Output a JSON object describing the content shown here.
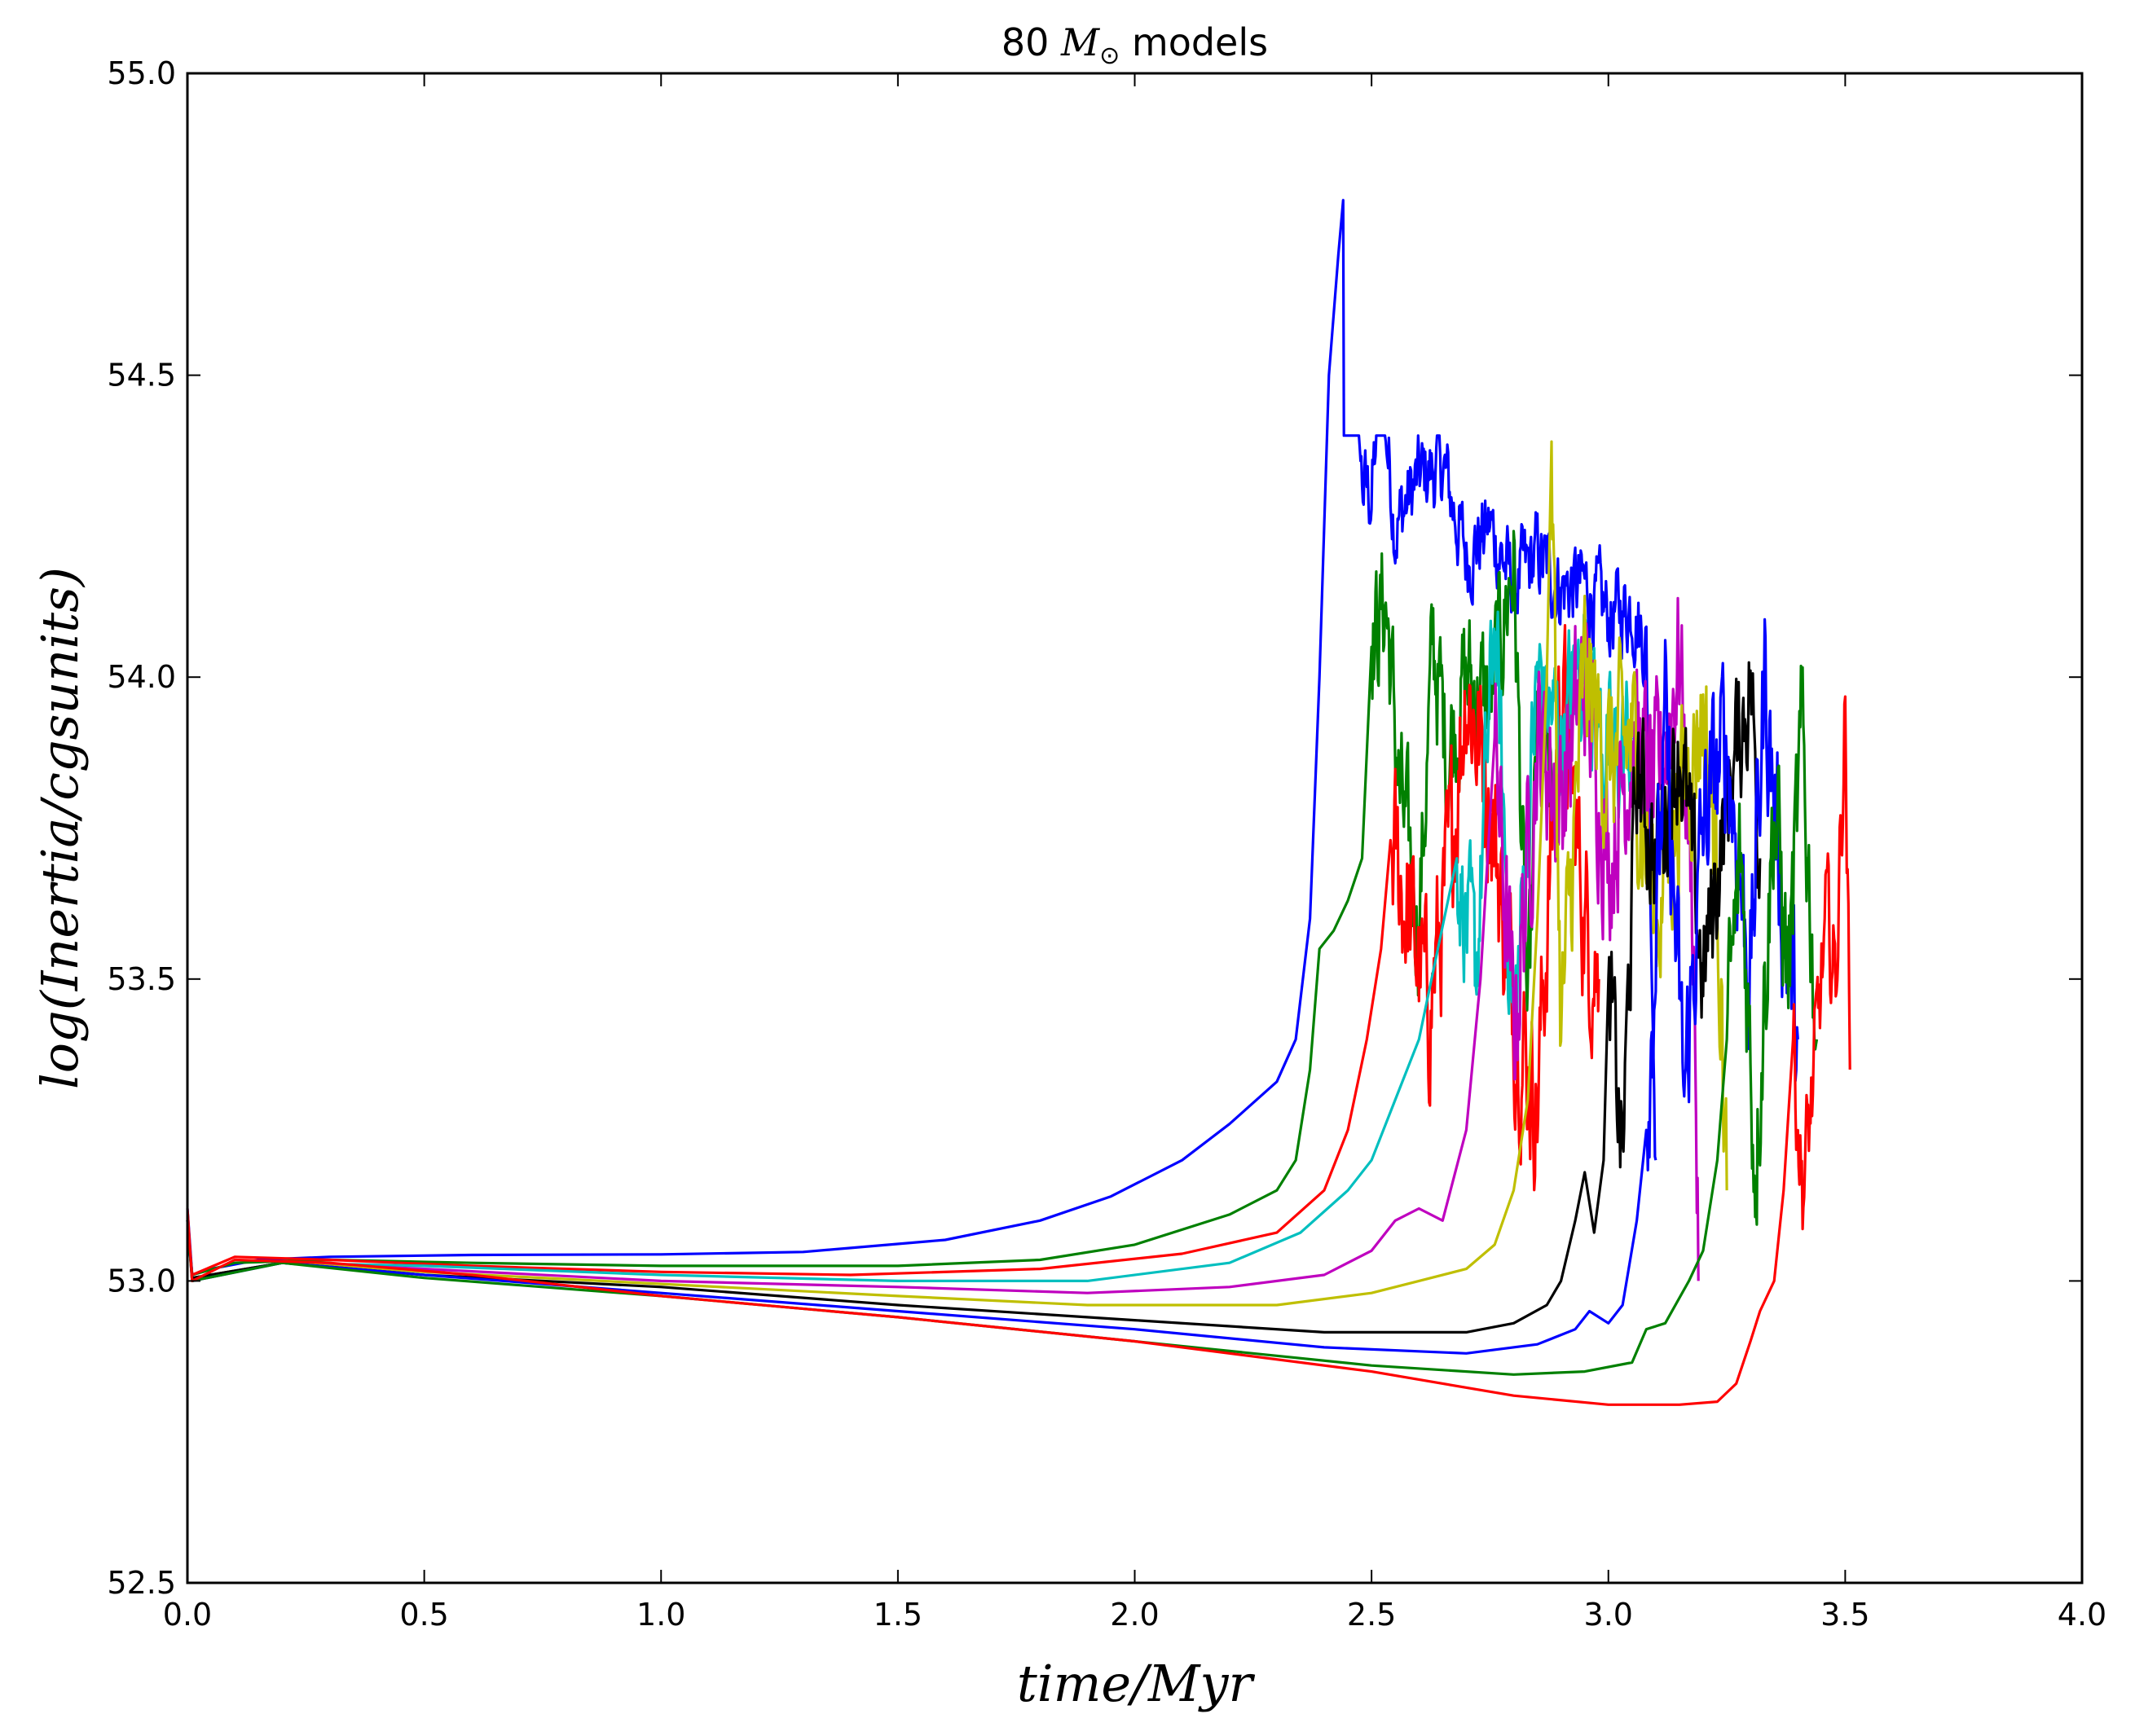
{
  "chart_data": {
    "type": "line",
    "title": {
      "prefix": "80 ",
      "math": "M",
      "sub": "⊙",
      "suffix": "  models"
    },
    "xlabel": "time/Myr",
    "ylabel": "log(Inertia/cgsunits)",
    "xlim": [
      0.0,
      4.0
    ],
    "ylim": [
      52.5,
      55.0
    ],
    "xticks": [
      "0.0",
      "0.5",
      "1.0",
      "1.5",
      "2.0",
      "2.5",
      "3.0",
      "3.5",
      "4.0"
    ],
    "yticks": [
      "52.5",
      "53.0",
      "53.5",
      "54.0",
      "54.5",
      "55.0"
    ],
    "grid": false,
    "series": [
      {
        "color": "#0000ff",
        "end_x": 3.1,
        "final": 53.2,
        "smooth": [
          [
            0,
            53.12
          ],
          [
            0.01,
            53.01
          ],
          [
            0.05,
            53.02
          ],
          [
            0.15,
            53.035
          ],
          [
            0.3,
            53.04
          ],
          [
            0.6,
            53.043
          ],
          [
            1.0,
            53.044
          ],
          [
            1.3,
            53.048
          ],
          [
            1.6,
            53.068
          ],
          [
            1.8,
            53.1
          ],
          [
            1.95,
            53.14
          ],
          [
            2.1,
            53.2
          ],
          [
            2.2,
            53.26
          ],
          [
            2.3,
            53.33
          ],
          [
            2.34,
            53.4
          ],
          [
            2.37,
            53.6
          ],
          [
            2.39,
            54.0
          ],
          [
            2.41,
            54.5
          ],
          [
            2.43,
            54.7
          ],
          [
            2.44,
            54.79
          ]
        ],
        "noisy": [
          [
            2.44,
            54.79
          ],
          [
            2.46,
            54.6
          ],
          [
            2.48,
            54.32
          ],
          [
            2.5,
            54.3
          ],
          [
            2.52,
            54.49
          ],
          [
            2.55,
            54.25
          ],
          [
            2.6,
            54.33
          ],
          [
            2.65,
            54.35
          ],
          [
            2.7,
            54.2
          ],
          [
            2.75,
            54.25
          ],
          [
            2.8,
            54.15
          ],
          [
            2.85,
            54.2
          ],
          [
            2.9,
            54.15
          ],
          [
            2.95,
            54.15
          ],
          [
            3.0,
            54.1
          ],
          [
            3.05,
            54.12
          ],
          [
            3.08,
            54.05
          ],
          [
            3.1,
            53.2
          ]
        ],
        "amp": 0.06
      },
      {
        "color": "#008000",
        "end_x": 2.88,
        "final": 53.8,
        "smooth": [
          [
            0,
            53.1
          ],
          [
            0.01,
            53.01
          ],
          [
            0.1,
            53.03
          ],
          [
            0.3,
            53.035
          ],
          [
            0.6,
            53.03
          ],
          [
            1.0,
            53.025
          ],
          [
            1.5,
            53.025
          ],
          [
            1.8,
            53.035
          ],
          [
            2.0,
            53.06
          ],
          [
            2.2,
            53.11
          ],
          [
            2.3,
            53.15
          ],
          [
            2.34,
            53.2
          ],
          [
            2.37,
            53.35
          ],
          [
            2.39,
            53.55
          ],
          [
            2.42,
            53.58
          ],
          [
            2.45,
            53.63
          ],
          [
            2.48,
            53.7
          ],
          [
            2.5,
            54.05
          ]
        ],
        "noisy": [
          [
            2.5,
            54.05
          ],
          [
            2.53,
            54.13
          ],
          [
            2.56,
            53.8
          ],
          [
            2.6,
            53.6
          ],
          [
            2.63,
            54.05
          ],
          [
            2.66,
            53.88
          ],
          [
            2.7,
            54.0
          ],
          [
            2.75,
            53.95
          ],
          [
            2.8,
            54.2
          ],
          [
            2.83,
            53.4
          ],
          [
            2.85,
            53.9
          ],
          [
            2.88,
            53.8
          ]
        ],
        "amp": 0.1
      },
      {
        "color": "#ff0000",
        "end_x": 2.98,
        "final": 53.5,
        "smooth": [
          [
            0,
            53.1
          ],
          [
            0.01,
            53.01
          ],
          [
            0.1,
            53.04
          ],
          [
            0.3,
            53.035
          ],
          [
            0.6,
            53.025
          ],
          [
            1.0,
            53.015
          ],
          [
            1.4,
            53.01
          ],
          [
            1.8,
            53.02
          ],
          [
            2.1,
            53.045
          ],
          [
            2.3,
            53.08
          ],
          [
            2.4,
            53.15
          ],
          [
            2.45,
            53.25
          ],
          [
            2.49,
            53.4
          ],
          [
            2.52,
            53.55
          ],
          [
            2.54,
            53.73
          ]
        ],
        "noisy": [
          [
            2.54,
            53.73
          ],
          [
            2.58,
            53.6
          ],
          [
            2.62,
            53.45
          ],
          [
            2.66,
            53.65
          ],
          [
            2.7,
            54.0
          ],
          [
            2.75,
            53.8
          ],
          [
            2.8,
            53.45
          ],
          [
            2.85,
            53.3
          ],
          [
            2.9,
            54.0
          ],
          [
            2.95,
            53.6
          ],
          [
            2.98,
            53.5
          ]
        ],
        "amp": 0.12
      },
      {
        "color": "#00bfbf",
        "end_x": 3.05,
        "final": 53.9,
        "smooth": [
          [
            0,
            53.1
          ],
          [
            0.01,
            53.005
          ],
          [
            0.2,
            53.03
          ],
          [
            0.5,
            53.025
          ],
          [
            1.0,
            53.01
          ],
          [
            1.5,
            53.0
          ],
          [
            1.9,
            53.0
          ],
          [
            2.2,
            53.03
          ],
          [
            2.35,
            53.08
          ],
          [
            2.45,
            53.15
          ],
          [
            2.5,
            53.2
          ],
          [
            2.55,
            53.3
          ],
          [
            2.6,
            53.4
          ],
          [
            2.64,
            53.55
          ],
          [
            2.68,
            53.7
          ]
        ],
        "noisy": [
          [
            2.68,
            53.7
          ],
          [
            2.72,
            53.5
          ],
          [
            2.76,
            54.1
          ],
          [
            2.8,
            53.4
          ],
          [
            2.85,
            54.0
          ],
          [
            2.9,
            53.9
          ],
          [
            2.95,
            54.05
          ],
          [
            3.0,
            53.85
          ],
          [
            3.05,
            53.9
          ]
        ],
        "amp": 0.1
      },
      {
        "color": "#bf00bf",
        "end_x": 3.19,
        "final": 53.0,
        "smooth": [
          [
            0,
            53.1
          ],
          [
            0.01,
            53.005
          ],
          [
            0.2,
            53.03
          ],
          [
            0.5,
            53.02
          ],
          [
            1.0,
            53.0
          ],
          [
            1.5,
            52.99
          ],
          [
            1.9,
            52.98
          ],
          [
            2.2,
            52.99
          ],
          [
            2.4,
            53.01
          ],
          [
            2.5,
            53.05
          ],
          [
            2.55,
            53.1
          ],
          [
            2.6,
            53.12
          ],
          [
            2.65,
            53.1
          ],
          [
            2.7,
            53.25
          ],
          [
            2.73,
            53.5
          ],
          [
            2.76,
            53.9
          ]
        ],
        "noisy": [
          [
            2.76,
            53.9
          ],
          [
            2.8,
            53.4
          ],
          [
            2.85,
            53.9
          ],
          [
            2.9,
            53.8
          ],
          [
            2.95,
            54.0
          ],
          [
            3.0,
            53.7
          ],
          [
            3.05,
            53.9
          ],
          [
            3.1,
            53.8
          ],
          [
            3.15,
            54.05
          ],
          [
            3.18,
            53.6
          ],
          [
            3.19,
            53.0
          ]
        ],
        "amp": 0.12
      },
      {
        "color": "#bfbf00",
        "end_x": 3.25,
        "final": 53.15,
        "smooth": [
          [
            0,
            53.1
          ],
          [
            0.01,
            53.005
          ],
          [
            0.2,
            53.03
          ],
          [
            0.5,
            53.015
          ],
          [
            1.0,
            52.995
          ],
          [
            1.5,
            52.975
          ],
          [
            1.9,
            52.96
          ],
          [
            2.3,
            52.96
          ],
          [
            2.5,
            52.98
          ],
          [
            2.6,
            53.0
          ],
          [
            2.7,
            53.02
          ],
          [
            2.76,
            53.06
          ],
          [
            2.8,
            53.15
          ],
          [
            2.83,
            53.3
          ],
          [
            2.85,
            53.6
          ],
          [
            2.87,
            54.0
          ],
          [
            2.88,
            54.39
          ]
        ],
        "noisy": [
          [
            2.88,
            54.39
          ],
          [
            2.9,
            53.4
          ],
          [
            2.95,
            54.0
          ],
          [
            3.0,
            53.85
          ],
          [
            3.05,
            53.9
          ],
          [
            3.1,
            53.6
          ],
          [
            3.15,
            53.8
          ],
          [
            3.2,
            53.95
          ],
          [
            3.23,
            53.7
          ],
          [
            3.25,
            53.15
          ]
        ],
        "amp": 0.12
      },
      {
        "color": "#000000",
        "end_x": 3.32,
        "final": 53.7,
        "smooth": [
          [
            0,
            53.1
          ],
          [
            0.01,
            53.005
          ],
          [
            0.2,
            53.03
          ],
          [
            0.5,
            53.01
          ],
          [
            1.0,
            52.99
          ],
          [
            1.5,
            52.96
          ],
          [
            2.0,
            52.935
          ],
          [
            2.4,
            52.915
          ],
          [
            2.7,
            52.915
          ],
          [
            2.8,
            52.93
          ],
          [
            2.87,
            52.96
          ],
          [
            2.9,
            53.0
          ],
          [
            2.93,
            53.1
          ],
          [
            2.95,
            53.18
          ],
          [
            2.97,
            53.08
          ],
          [
            2.99,
            53.2
          ],
          [
            3.0,
            53.5
          ]
        ],
        "noisy": [
          [
            3.0,
            53.5
          ],
          [
            3.03,
            53.2
          ],
          [
            3.06,
            53.85
          ],
          [
            3.1,
            53.7
          ],
          [
            3.15,
            53.9
          ],
          [
            3.2,
            53.5
          ],
          [
            3.25,
            53.8
          ],
          [
            3.3,
            54.0
          ],
          [
            3.32,
            53.7
          ]
        ],
        "amp": 0.1
      },
      {
        "color": "#0000ff",
        "end_x": 3.4,
        "final": 53.4,
        "smooth": [
          [
            0,
            53.1
          ],
          [
            0.01,
            53.0
          ],
          [
            0.2,
            53.03
          ],
          [
            0.5,
            53.01
          ],
          [
            1.0,
            52.98
          ],
          [
            1.5,
            52.95
          ],
          [
            2.0,
            52.92
          ],
          [
            2.4,
            52.89
          ],
          [
            2.7,
            52.88
          ],
          [
            2.85,
            52.895
          ],
          [
            2.93,
            52.92
          ],
          [
            2.96,
            52.95
          ],
          [
            3.0,
            52.93
          ],
          [
            3.03,
            52.96
          ],
          [
            3.06,
            53.1
          ],
          [
            3.08,
            53.25
          ]
        ],
        "noisy": [
          [
            3.08,
            53.25
          ],
          [
            3.12,
            53.9
          ],
          [
            3.16,
            53.3
          ],
          [
            3.2,
            53.75
          ],
          [
            3.25,
            53.9
          ],
          [
            3.3,
            53.5
          ],
          [
            3.33,
            54.0
          ],
          [
            3.37,
            53.6
          ],
          [
            3.4,
            53.4
          ]
        ],
        "amp": 0.12
      },
      {
        "color": "#008000",
        "end_x": 3.44,
        "final": 53.4,
        "smooth": [
          [
            0,
            53.1
          ],
          [
            0.01,
            53.0
          ],
          [
            0.2,
            53.03
          ],
          [
            0.5,
            53.005
          ],
          [
            1.0,
            52.975
          ],
          [
            1.5,
            52.94
          ],
          [
            2.0,
            52.9
          ],
          [
            2.5,
            52.86
          ],
          [
            2.8,
            52.845
          ],
          [
            2.95,
            52.85
          ],
          [
            3.05,
            52.865
          ],
          [
            3.08,
            52.92
          ],
          [
            3.12,
            52.93
          ],
          [
            3.17,
            53.0
          ],
          [
            3.2,
            53.05
          ],
          [
            3.23,
            53.2
          ],
          [
            3.25,
            53.4
          ]
        ],
        "noisy": [
          [
            3.25,
            53.4
          ],
          [
            3.28,
            53.7
          ],
          [
            3.31,
            53.2
          ],
          [
            3.35,
            53.8
          ],
          [
            3.38,
            53.5
          ],
          [
            3.41,
            53.9
          ],
          [
            3.44,
            53.4
          ]
        ],
        "amp": 0.12
      },
      {
        "color": "#ff0000",
        "end_x": 3.51,
        "final": 53.35,
        "smooth": [
          [
            0,
            53.12
          ],
          [
            0.01,
            53.0
          ],
          [
            0.1,
            53.035
          ],
          [
            0.3,
            53.03
          ],
          [
            0.6,
            53.01
          ],
          [
            1.0,
            52.975
          ],
          [
            1.5,
            52.94
          ],
          [
            2.0,
            52.9
          ],
          [
            2.5,
            52.85
          ],
          [
            2.8,
            52.81
          ],
          [
            3.0,
            52.795
          ],
          [
            3.15,
            52.795
          ],
          [
            3.23,
            52.8
          ],
          [
            3.27,
            52.83
          ],
          [
            3.3,
            52.9
          ],
          [
            3.32,
            52.95
          ],
          [
            3.35,
            53.0
          ],
          [
            3.37,
            53.15
          ],
          [
            3.39,
            53.4
          ]
        ],
        "noisy": [
          [
            3.39,
            53.4
          ],
          [
            3.41,
            53.15
          ],
          [
            3.43,
            53.3
          ],
          [
            3.46,
            53.6
          ],
          [
            3.48,
            53.5
          ],
          [
            3.5,
            53.95
          ],
          [
            3.51,
            53.35
          ]
        ],
        "amp": 0.08
      }
    ]
  }
}
